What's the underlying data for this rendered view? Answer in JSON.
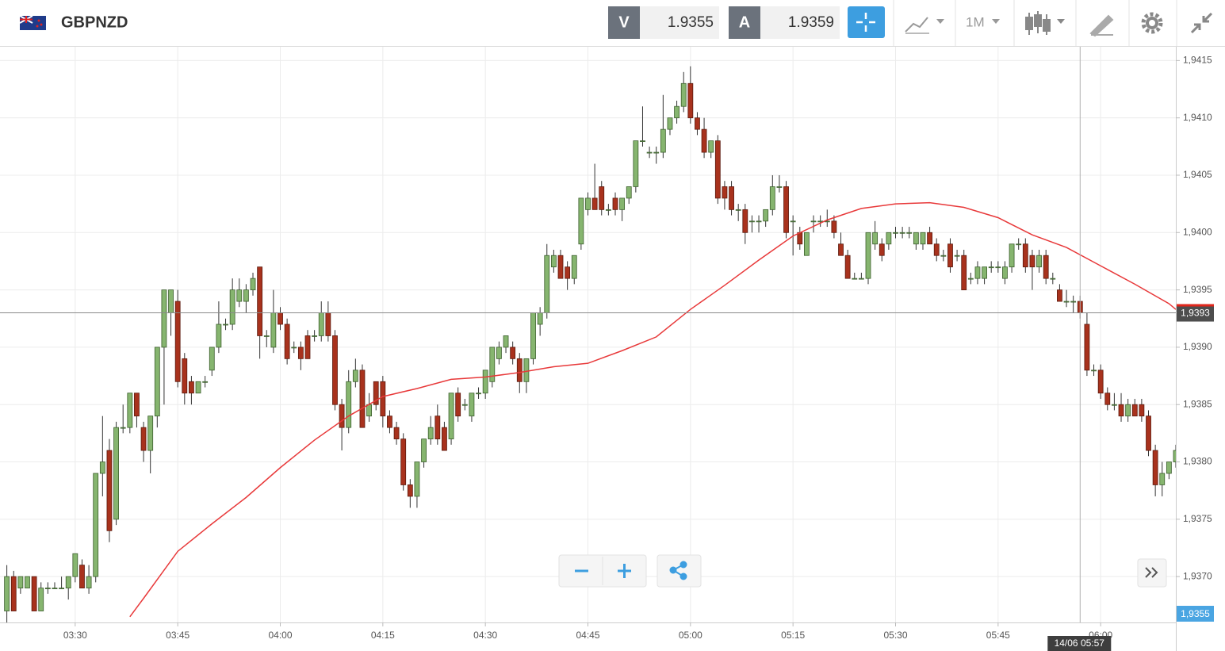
{
  "toolbar": {
    "symbol": "GBPNZD",
    "sell_label": "V",
    "sell_price": "1.9355",
    "buy_label": "A",
    "buy_price": "1.9359",
    "timeframe": "1M"
  },
  "chart_data": {
    "type": "candlestick",
    "x": [
      "03:20",
      "03:21",
      "03:22",
      "03:23",
      "03:24",
      "03:25",
      "03:26",
      "03:27",
      "03:28",
      "03:29",
      "03:30",
      "03:31",
      "03:32",
      "03:33",
      "03:34",
      "03:35",
      "03:36",
      "03:37",
      "03:38",
      "03:39",
      "03:40",
      "03:41",
      "03:42",
      "03:43",
      "03:44",
      "03:45",
      "03:46",
      "03:47",
      "03:48",
      "03:49",
      "03:50",
      "03:51",
      "03:52",
      "03:53",
      "03:54",
      "03:55",
      "03:56",
      "03:57",
      "03:58",
      "03:59",
      "04:00",
      "04:01",
      "04:02",
      "04:03",
      "04:04",
      "04:05",
      "04:06",
      "04:07",
      "04:08",
      "04:09",
      "04:10",
      "04:11",
      "04:12",
      "04:13",
      "04:14",
      "04:15",
      "04:16",
      "04:17",
      "04:18",
      "04:19",
      "04:20",
      "04:21",
      "04:22",
      "04:23",
      "04:24",
      "04:25",
      "04:26",
      "04:27",
      "04:28",
      "04:29",
      "04:30",
      "04:31",
      "04:32",
      "04:33",
      "04:34",
      "04:35",
      "04:36",
      "04:37",
      "04:38",
      "04:39",
      "04:40",
      "04:41",
      "04:42",
      "04:43",
      "04:44",
      "04:45",
      "04:46",
      "04:47",
      "04:48",
      "04:49",
      "04:50",
      "04:51",
      "04:52",
      "04:53",
      "04:54",
      "04:55",
      "04:56",
      "04:57",
      "04:58",
      "04:59",
      "05:00",
      "05:01",
      "05:02",
      "05:03",
      "05:04",
      "05:05",
      "05:06",
      "05:07",
      "05:08",
      "05:09",
      "05:10",
      "05:11",
      "05:12",
      "05:13",
      "05:14",
      "05:15",
      "05:16",
      "05:17",
      "05:18",
      "05:19",
      "05:20",
      "05:21",
      "05:22",
      "05:23",
      "05:24",
      "05:25",
      "05:26",
      "05:27",
      "05:28",
      "05:29",
      "05:30",
      "05:31",
      "05:32",
      "05:33",
      "05:34",
      "05:35",
      "05:36",
      "05:37",
      "05:38",
      "05:39",
      "05:40",
      "05:41",
      "05:42",
      "05:43",
      "05:44",
      "05:45",
      "05:46",
      "05:47",
      "05:48",
      "05:49",
      "05:50",
      "05:51",
      "05:52",
      "05:53",
      "05:54",
      "05:55",
      "05:56",
      "05:57",
      "05:58",
      "05:59",
      "06:00",
      "06:01",
      "06:02",
      "06:03",
      "06:04",
      "06:05",
      "06:06",
      "06:07",
      "06:08",
      "06:09",
      "06:10",
      "06:11"
    ],
    "open": [
      1.9367,
      1.937,
      1.9369,
      1.9369,
      1.937,
      1.9367,
      1.9369,
      1.9369,
      1.9369,
      1.9369,
      1.937,
      1.9371,
      1.9369,
      1.937,
      1.9379,
      1.9381,
      1.9375,
      1.9383,
      1.9383,
      1.9386,
      1.9383,
      1.9381,
      1.9384,
      1.939,
      1.9393,
      1.9394,
      1.9389,
      1.9387,
      1.9386,
      1.9387,
      1.9388,
      1.939,
      1.9392,
      1.9392,
      1.9394,
      1.9394,
      1.9395,
      1.9397,
      1.9391,
      1.939,
      1.9393,
      1.9392,
      1.939,
      1.939,
      1.9391,
      1.9391,
      1.9391,
      1.9393,
      1.9391,
      1.9385,
      1.9383,
      1.9387,
      1.9388,
      1.9384,
      1.9387,
      1.9387,
      1.9384,
      1.9383,
      1.9382,
      1.9378,
      1.9377,
      1.938,
      1.9382,
      1.9384,
      1.9383,
      1.9382,
      1.9386,
      1.9385,
      1.9384,
      1.9386,
      1.9386,
      1.9387,
      1.9389,
      1.939,
      1.939,
      1.9389,
      1.9387,
      1.9389,
      1.9392,
      1.9393,
      1.9397,
      1.9398,
      1.9397,
      1.9396,
      1.9399,
      1.9402,
      1.9403,
      1.9404,
      1.9402,
      1.9403,
      1.9402,
      1.9403,
      1.9404,
      1.9408,
      1.9407,
      1.9407,
      1.9407,
      1.9409,
      1.941,
      1.9411,
      1.9413,
      1.941,
      1.9409,
      1.9407,
      1.9408,
      1.9404,
      1.9404,
      1.9402,
      1.9402,
      1.9401,
      1.9401,
      1.9401,
      1.9402,
      1.9404,
      1.9404,
      1.9401,
      1.94,
      1.9398,
      1.9401,
      1.9401,
      1.9401,
      1.9401,
      1.9399,
      1.9398,
      1.9396,
      1.9396,
      1.9396,
      1.9399,
      1.9399,
      1.9399,
      1.94,
      1.94,
      1.94,
      1.9399,
      1.9399,
      1.94,
      1.9399,
      1.9398,
      1.9399,
      1.9398,
      1.9398,
      1.9396,
      1.9396,
      1.9396,
      1.9397,
      1.9397,
      1.9396,
      1.9397,
      1.9399,
      1.9399,
      1.9398,
      1.9397,
      1.9398,
      1.9396,
      1.9395,
      1.9394,
      1.9394,
      1.9394,
      1.9392,
      1.9388,
      1.9388,
      1.9386,
      1.9385,
      1.9385,
      1.9384,
      1.9385,
      1.9385,
      1.9384,
      1.9381,
      1.9378,
      1.9379,
      1.938
    ],
    "high": [
      1.9371,
      1.93705,
      1.937,
      1.937,
      1.937,
      1.93695,
      1.93695,
      1.93695,
      1.937,
      1.937,
      1.9372,
      1.93715,
      1.9371,
      1.9379,
      1.9384,
      1.9382,
      1.93835,
      1.9385,
      1.9386,
      1.9386,
      1.93835,
      1.9384,
      1.939,
      1.9395,
      1.9395,
      1.9395,
      1.93895,
      1.93875,
      1.9387,
      1.93875,
      1.939,
      1.9394,
      1.93925,
      1.9396,
      1.9396,
      1.93955,
      1.93965,
      1.9397,
      1.93915,
      1.9395,
      1.93935,
      1.93925,
      1.93905,
      1.93905,
      1.93915,
      1.93915,
      1.9394,
      1.9394,
      1.93915,
      1.93855,
      1.9388,
      1.9389,
      1.93885,
      1.9386,
      1.9387,
      1.93875,
      1.93845,
      1.93835,
      1.93825,
      1.93785,
      1.938,
      1.9382,
      1.9384,
      1.9385,
      1.93835,
      1.9386,
      1.93865,
      1.93855,
      1.9386,
      1.93865,
      1.9388,
      1.939,
      1.93905,
      1.9391,
      1.93905,
      1.93895,
      1.9389,
      1.9393,
      1.93935,
      1.9399,
      1.93985,
      1.93985,
      1.93975,
      1.9398,
      1.9403,
      1.94035,
      1.9406,
      1.94045,
      1.94025,
      1.94035,
      1.9403,
      1.9404,
      1.9408,
      1.9411,
      1.94075,
      1.94075,
      1.9412,
      1.941,
      1.94115,
      1.9414,
      1.94145,
      1.94105,
      1.941,
      1.9408,
      1.94085,
      1.94045,
      1.94045,
      1.94025,
      1.94025,
      1.94015,
      1.94015,
      1.9402,
      1.9405,
      1.9405,
      1.94045,
      1.94015,
      1.94005,
      1.94,
      1.94015,
      1.94015,
      1.9402,
      1.94015,
      1.94,
      1.93985,
      1.93965,
      1.93965,
      1.94,
      1.9401,
      1.93995,
      1.94,
      1.94005,
      1.94005,
      1.94005,
      1.94,
      1.94,
      1.94005,
      1.93995,
      1.93985,
      1.93995,
      1.93985,
      1.93985,
      1.93965,
      1.93975,
      1.9397,
      1.93975,
      1.93975,
      1.93975,
      1.9399,
      1.93995,
      1.93995,
      1.93985,
      1.93985,
      1.93985,
      1.93965,
      1.93955,
      1.9395,
      1.93945,
      1.93945,
      1.9393,
      1.93885,
      1.93885,
      1.93865,
      1.9386,
      1.9386,
      1.93855,
      1.93855,
      1.93855,
      1.93845,
      1.93815,
      1.938,
      1.938,
      1.93815
    ],
    "low": [
      1.9366,
      1.9367,
      1.93685,
      1.9369,
      1.9367,
      1.9367,
      1.93685,
      1.9369,
      1.9369,
      1.9368,
      1.93695,
      1.9369,
      1.93685,
      1.93695,
      1.9377,
      1.9373,
      1.93745,
      1.93825,
      1.93825,
      1.9383,
      1.938,
      1.9379,
      1.9383,
      1.9385,
      1.9391,
      1.93865,
      1.9385,
      1.9385,
      1.9386,
      1.93865,
      1.93875,
      1.93895,
      1.93915,
      1.93915,
      1.93935,
      1.9393,
      1.93945,
      1.9389,
      1.939,
      1.93895,
      1.93915,
      1.93885,
      1.93895,
      1.9388,
      1.9389,
      1.93905,
      1.93905,
      1.93905,
      1.93845,
      1.9381,
      1.93825,
      1.93865,
      1.9383,
      1.93835,
      1.93845,
      1.9383,
      1.93825,
      1.93815,
      1.93775,
      1.9376,
      1.9376,
      1.93795,
      1.93815,
      1.93815,
      1.9381,
      1.93815,
      1.93835,
      1.93845,
      1.93835,
      1.93855,
      1.93855,
      1.93865,
      1.93885,
      1.93895,
      1.93885,
      1.9386,
      1.9386,
      1.93885,
      1.9391,
      1.93925,
      1.93965,
      1.9396,
      1.9395,
      1.93955,
      1.93985,
      1.94015,
      1.9402,
      1.94015,
      1.94015,
      1.94015,
      1.9401,
      1.94025,
      1.94035,
      1.94075,
      1.94065,
      1.9406,
      1.94065,
      1.94085,
      1.94095,
      1.94105,
      1.94095,
      1.94085,
      1.94065,
      1.94065,
      1.94025,
      1.9402,
      1.94015,
      1.9401,
      1.9399,
      1.94,
      1.94,
      1.94005,
      1.94015,
      1.94035,
      1.93995,
      1.9398,
      1.93985,
      1.9398,
      1.94,
      1.94005,
      1.94005,
      1.93995,
      1.9398,
      1.9396,
      1.9396,
      1.9396,
      1.93955,
      1.93985,
      1.93975,
      1.93985,
      1.93995,
      1.93995,
      1.93995,
      1.93985,
      1.93985,
      1.9399,
      1.93975,
      1.93975,
      1.93965,
      1.93975,
      1.9395,
      1.93955,
      1.93955,
      1.93955,
      1.93965,
      1.93965,
      1.93955,
      1.93965,
      1.93985,
      1.93965,
      1.9395,
      1.93965,
      1.93955,
      1.93955,
      1.9394,
      1.93935,
      1.9393,
      1.93925,
      1.93875,
      1.93875,
      1.93855,
      1.93845,
      1.93845,
      1.93835,
      1.93835,
      1.9384,
      1.93835,
      1.93805,
      1.9377,
      1.9377,
      1.93785,
      1.93795
    ],
    "close": [
      1.937,
      1.9367,
      1.937,
      1.937,
      1.9367,
      1.9369,
      1.9369,
      1.9369,
      1.9369,
      1.937,
      1.9372,
      1.9369,
      1.937,
      1.9379,
      1.938,
      1.9374,
      1.9383,
      1.9383,
      1.9386,
      1.9384,
      1.9381,
      1.9384,
      1.939,
      1.9395,
      1.9395,
      1.9387,
      1.9386,
      1.9386,
      1.9387,
      1.9387,
      1.939,
      1.9392,
      1.9392,
      1.9395,
      1.9395,
      1.9395,
      1.9396,
      1.9391,
      1.9391,
      1.9393,
      1.9392,
      1.9389,
      1.939,
      1.9389,
      1.9389,
      1.9391,
      1.9393,
      1.9391,
      1.9385,
      1.9383,
      1.9387,
      1.9388,
      1.9383,
      1.9385,
      1.9385,
      1.9384,
      1.9383,
      1.9382,
      1.9378,
      1.9377,
      1.938,
      1.9382,
      1.9383,
      1.9382,
      1.9381,
      1.9386,
      1.9384,
      1.9385,
      1.9386,
      1.9386,
      1.9388,
      1.939,
      1.939,
      1.9391,
      1.9389,
      1.9387,
      1.9389,
      1.9393,
      1.9393,
      1.9398,
      1.9398,
      1.9396,
      1.9396,
      1.9398,
      1.9403,
      1.9403,
      1.9402,
      1.9402,
      1.9402,
      1.9402,
      1.9403,
      1.9404,
      1.9408,
      1.9408,
      1.9407,
      1.9407,
      1.9409,
      1.941,
      1.9411,
      1.9413,
      1.941,
      1.9409,
      1.9407,
      1.9408,
      1.9403,
      1.9403,
      1.9402,
      1.9402,
      1.94,
      1.9401,
      1.9401,
      1.9402,
      1.9404,
      1.9404,
      1.94,
      1.9401,
      1.9399,
      1.94,
      1.9401,
      1.9401,
      1.9401,
      1.94,
      1.9398,
      1.9396,
      1.9396,
      1.9396,
      1.94,
      1.94,
      1.9398,
      1.94,
      1.94,
      1.94,
      1.94,
      1.94,
      1.94,
      1.9399,
      1.9398,
      1.9398,
      1.9397,
      1.9398,
      1.9395,
      1.9396,
      1.9397,
      1.9397,
      1.9397,
      1.9397,
      1.9397,
      1.9399,
      1.9399,
      1.9397,
      1.9397,
      1.9398,
      1.9396,
      1.9396,
      1.9394,
      1.9394,
      1.9394,
      1.9393,
      1.9388,
      1.9388,
      1.9386,
      1.9385,
      1.9385,
      1.9384,
      1.9385,
      1.9384,
      1.9384,
      1.9381,
      1.9378,
      1.9379,
      1.938,
      1.9381
    ],
    "up_color": "#86b56f",
    "down_color": "#a8321d",
    "overlay": {
      "color": "#e8393a",
      "x": [
        "03:38",
        "03:40",
        "03:45",
        "03:50",
        "03:55",
        "04:00",
        "04:05",
        "04:10",
        "04:15",
        "04:20",
        "04:25",
        "04:30",
        "04:35",
        "04:40",
        "04:45",
        "04:50",
        "04:55",
        "05:00",
        "05:05",
        "05:10",
        "05:15",
        "05:20",
        "05:25",
        "05:30",
        "05:35",
        "05:40",
        "05:45",
        "05:50",
        "05:55",
        "06:00",
        "06:05",
        "06:10",
        "06:11"
      ],
      "values": [
        1.93665,
        1.93681,
        1.93722,
        1.93746,
        1.93769,
        1.93795,
        1.93819,
        1.9384,
        1.93857,
        1.93864,
        1.93872,
        1.93874,
        1.93878,
        1.93883,
        1.93886,
        1.93897,
        1.93909,
        1.93933,
        1.93954,
        1.93976,
        1.93997,
        1.94011,
        1.94021,
        1.94025,
        1.94026,
        1.94022,
        1.94013,
        1.93998,
        1.93987,
        1.93971,
        1.93955,
        1.93938,
        1.93933
      ]
    },
    "xlim": [
      "03:19",
      "06:11"
    ],
    "xticks": [
      "03:30",
      "03:45",
      "04:00",
      "04:15",
      "04:30",
      "04:45",
      "05:00",
      "05:15",
      "05:30",
      "05:45",
      "06:00"
    ],
    "ylim": [
      1.9366,
      1.94162
    ],
    "yticks": [
      {
        "value": 1.937,
        "label": "1,9370"
      },
      {
        "value": 1.9375,
        "label": "1,9375"
      },
      {
        "value": 1.938,
        "label": "1,9380"
      },
      {
        "value": 1.9385,
        "label": "1,9385"
      },
      {
        "value": 1.939,
        "label": "1,9390"
      },
      {
        "value": 1.9395,
        "label": "1,9395"
      },
      {
        "value": 1.94,
        "label": "1,9400"
      },
      {
        "value": 1.9405,
        "label": "1,9405"
      },
      {
        "value": 1.941,
        "label": "1,9410"
      },
      {
        "value": 1.9415,
        "label": "1,9415"
      }
    ],
    "grid": true,
    "crosshair": {
      "price": {
        "value": 1.9393,
        "label": "1,9393"
      },
      "time": {
        "value": "05:57",
        "label": "14/06 05:57"
      }
    },
    "bid_marker": {
      "value": 1.9355,
      "label": "1,9355"
    }
  }
}
